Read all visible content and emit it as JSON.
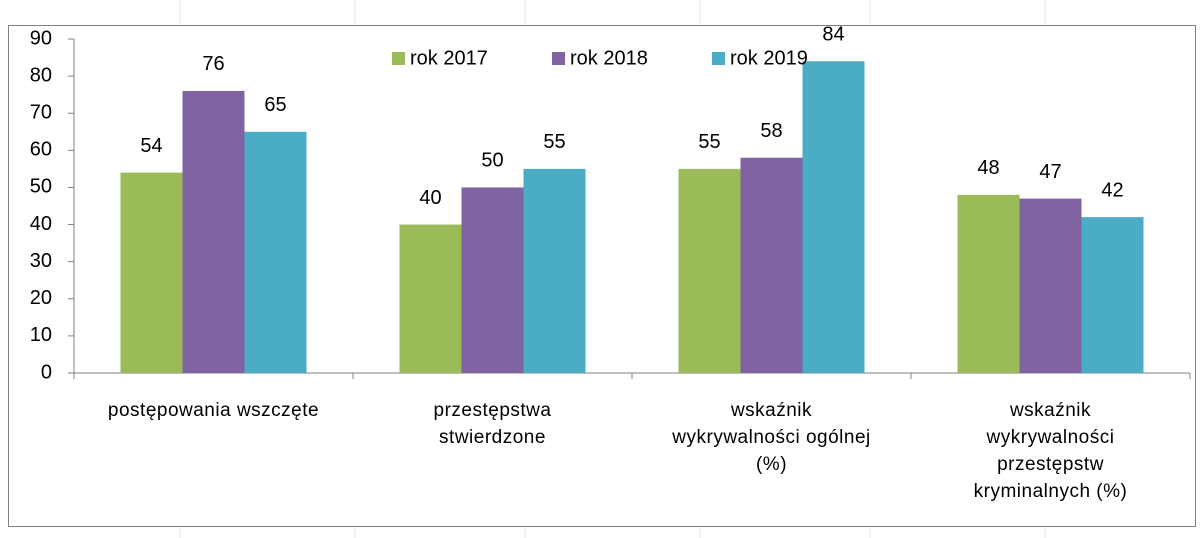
{
  "chart_data": {
    "type": "bar",
    "categories": [
      "postępowania wszczęte",
      "przestępstwa\nstwierdzone",
      "wskaźnik\nwykrywalności ogólnej\n(%)",
      "wskaźnik\nwykrywalności\nprzestępstw\nkryminalnych (%)"
    ],
    "series": [
      {
        "name": "rok 2017",
        "color": "#9bbb59",
        "values": [
          54,
          40,
          55,
          48
        ]
      },
      {
        "name": "rok 2018",
        "color": "#8064a2",
        "values": [
          76,
          50,
          58,
          47
        ]
      },
      {
        "name": "rok 2019",
        "color": "#4bacc6",
        "values": [
          65,
          55,
          84,
          42
        ]
      }
    ],
    "ylim": [
      0,
      90
    ],
    "yticks": [
      0,
      10,
      20,
      30,
      40,
      50,
      60,
      70,
      80,
      90
    ],
    "grid": false,
    "legend": "top"
  }
}
